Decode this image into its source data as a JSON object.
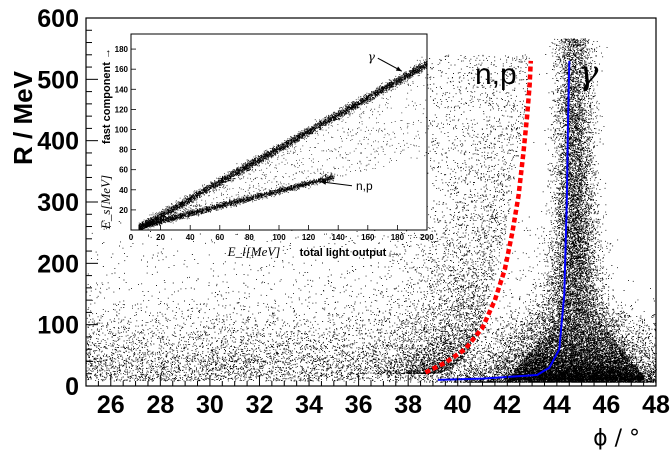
{
  "chart_data": [
    {
      "type": "scatter",
      "panel": "main",
      "xlabel": "ϕ / °",
      "ylabel": "R / MeV",
      "xlim": [
        25,
        48
      ],
      "ylim": [
        0,
        600
      ],
      "x_ticks": [
        26,
        28,
        30,
        32,
        34,
        36,
        38,
        40,
        42,
        44,
        46,
        48
      ],
      "y_ticks": [
        0,
        100,
        200,
        300,
        400,
        500,
        600
      ],
      "curve_labels": {
        "np": "n,p",
        "gamma": "γ"
      },
      "series": [
        {
          "name": "n,p",
          "style": "dotted",
          "color": "#ff0000",
          "x": [
            38.7,
            39.5,
            40.3,
            41.0,
            41.5,
            41.9,
            42.2,
            42.45,
            42.65,
            42.8,
            42.9,
            42.95
          ],
          "y": [
            22,
            38,
            60,
            95,
            140,
            190,
            250,
            310,
            380,
            440,
            490,
            530
          ]
        },
        {
          "name": "γ",
          "style": "solid",
          "color": "#0000ff",
          "x": [
            39.2,
            41.0,
            43.2,
            43.7,
            44.1,
            44.3,
            44.4,
            44.45,
            44.5
          ],
          "y": [
            10,
            12,
            18,
            30,
            60,
            150,
            300,
            430,
            530
          ]
        }
      ],
      "density": {
        "note": "dense point cloud of events",
        "band": {
          "x": [
            25,
            48
          ],
          "y_center": 30
        },
        "hotspot": {
          "x": 44.8,
          "y": 40
        }
      }
    },
    {
      "type": "scatter",
      "panel": "inset",
      "xlabel_var": "E_l[MeV]",
      "xlabel_text": "total light output →",
      "ylabel_var": "E_s[MeV]",
      "ylabel_text": "fast component →",
      "xlim": [
        0,
        200
      ],
      "ylim": [
        0,
        195
      ],
      "x_ticks": [
        0,
        20,
        40,
        60,
        80,
        100,
        120,
        140,
        160,
        180,
        200
      ],
      "y_ticks": [
        20,
        40,
        60,
        80,
        100,
        120,
        140,
        160,
        180
      ],
      "series": [
        {
          "name": "γ",
          "x": [
            10,
            200
          ],
          "y": [
            6,
            165
          ]
        },
        {
          "name": "n,p",
          "x": [
            10,
            135
          ],
          "y": [
            5,
            52
          ]
        }
      ],
      "annotations": [
        {
          "text": "γ",
          "x": 160,
          "y": 168,
          "arrow_to": [
            183,
            158
          ]
        },
        {
          "text": "n,p",
          "x": 152,
          "y": 40,
          "arrow_to": [
            128,
            48
          ]
        }
      ]
    }
  ]
}
